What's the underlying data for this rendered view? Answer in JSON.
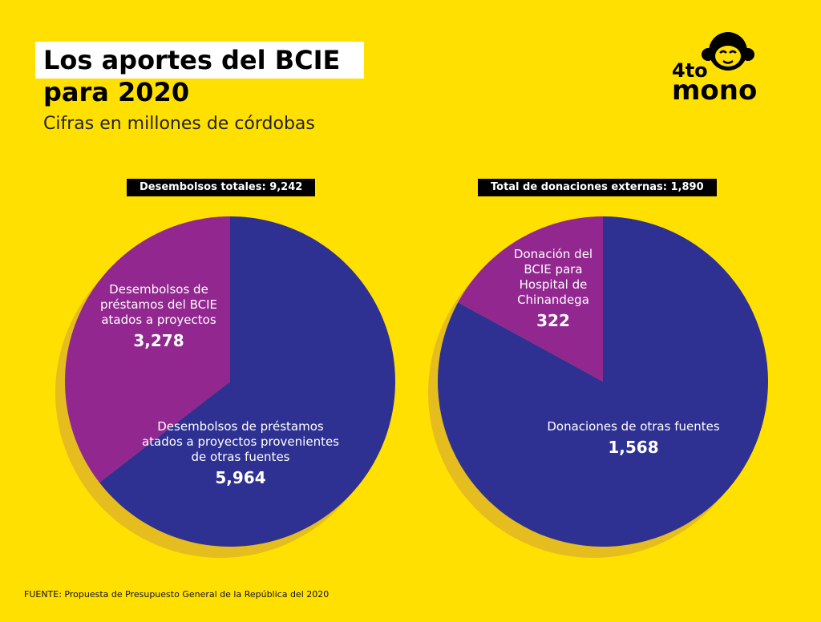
{
  "header": {
    "title_line1": "Los aportes del BCIE",
    "title_line2": "para 2020",
    "subtitle": "Cifras en millones de córdobas"
  },
  "logo": {
    "text_top": "4to",
    "text_bottom": "mono",
    "icon": "monkey-face-icon"
  },
  "colors": {
    "background": "#FFE000",
    "shadow": "#E6BD1E",
    "blue": "#2E3192",
    "purple": "#92278F"
  },
  "chart_data": [
    {
      "type": "pie",
      "title": "Desembolsos totales: 9,242",
      "slices": [
        {
          "label": "Desembolsos de préstamos atados a proyectos provenientes de otras fuentes",
          "value": 5964,
          "value_label": "5,964",
          "color": "#2E3192"
        },
        {
          "label": "Desembolsos de préstamos del BCIE atados a proyectos",
          "value": 3278,
          "value_label": "3,278",
          "color": "#92278F"
        }
      ]
    },
    {
      "type": "pie",
      "title": "Total de donaciones externas: 1,890",
      "slices": [
        {
          "label": "Donaciones de otras fuentes",
          "value": 1568,
          "value_label": "1,568",
          "color": "#2E3192"
        },
        {
          "label": "Donación del BCIE para Hospital de Chinandega",
          "value": 322,
          "value_label": "322",
          "color": "#92278F"
        }
      ]
    }
  ],
  "source": "FUENTE: Propuesta de Presupuesto General de la República del 2020"
}
